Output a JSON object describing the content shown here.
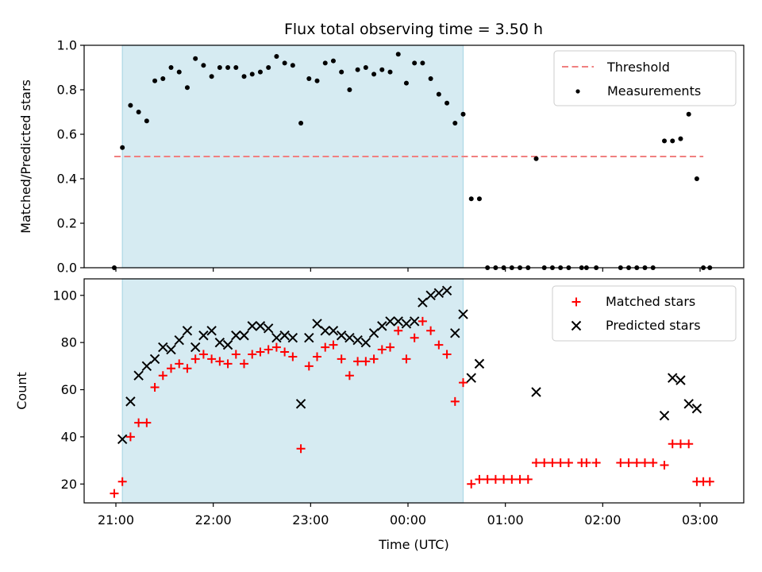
{
  "chart_data": [
    {
      "type": "scatter",
      "title": "Flux total observing time = 3.50 h",
      "xlabel": "",
      "ylabel": "Matched/Predicted stars",
      "ylim": [
        0,
        1.0
      ],
      "yticks": [
        "0.0",
        "0.2",
        "0.4",
        "0.6",
        "0.8",
        "1.0"
      ],
      "grid": false,
      "legend_position": "top-right",
      "shaded_span": [
        "21:04",
        "00:34"
      ],
      "threshold": {
        "name": "Threshold",
        "y": 0.5,
        "x_range": [
          "20:59",
          "03:02"
        ],
        "color": "#f08080"
      },
      "series": [
        {
          "name": "Measurements",
          "color": "#000000",
          "marker": "dot",
          "points": [
            [
              "20:59",
              0.0
            ],
            [
              "21:04",
              0.54
            ],
            [
              "21:09",
              0.73
            ],
            [
              "21:14",
              0.7
            ],
            [
              "21:19",
              0.66
            ],
            [
              "21:24",
              0.84
            ],
            [
              "21:29",
              0.85
            ],
            [
              "21:34",
              0.9
            ],
            [
              "21:39",
              0.88
            ],
            [
              "21:44",
              0.81
            ],
            [
              "21:49",
              0.94
            ],
            [
              "21:54",
              0.91
            ],
            [
              "21:59",
              0.86
            ],
            [
              "22:04",
              0.9
            ],
            [
              "22:09",
              0.9
            ],
            [
              "22:14",
              0.9
            ],
            [
              "22:19",
              0.86
            ],
            [
              "22:24",
              0.87
            ],
            [
              "22:29",
              0.88
            ],
            [
              "22:34",
              0.9
            ],
            [
              "22:39",
              0.95
            ],
            [
              "22:44",
              0.92
            ],
            [
              "22:49",
              0.91
            ],
            [
              "22:54",
              0.65
            ],
            [
              "22:59",
              0.85
            ],
            [
              "23:04",
              0.84
            ],
            [
              "23:09",
              0.92
            ],
            [
              "23:14",
              0.93
            ],
            [
              "23:19",
              0.88
            ],
            [
              "23:24",
              0.8
            ],
            [
              "23:29",
              0.89
            ],
            [
              "23:34",
              0.9
            ],
            [
              "23:39",
              0.87
            ],
            [
              "23:44",
              0.89
            ],
            [
              "23:49",
              0.88
            ],
            [
              "23:54",
              0.96
            ],
            [
              "23:59",
              0.83
            ],
            [
              "00:04",
              0.92
            ],
            [
              "00:09",
              0.92
            ],
            [
              "00:14",
              0.85
            ],
            [
              "00:19",
              0.78
            ],
            [
              "00:24",
              0.74
            ],
            [
              "00:29",
              0.65
            ],
            [
              "00:34",
              0.69
            ],
            [
              "00:39",
              0.31
            ],
            [
              "00:44",
              0.31
            ],
            [
              "00:49",
              0.0
            ],
            [
              "00:54",
              0.0
            ],
            [
              "00:59",
              0.0
            ],
            [
              "01:04",
              0.0
            ],
            [
              "01:09",
              0.0
            ],
            [
              "01:14",
              0.0
            ],
            [
              "01:19",
              0.49
            ],
            [
              "01:24",
              0.0
            ],
            [
              "01:29",
              0.0
            ],
            [
              "01:34",
              0.0
            ],
            [
              "01:39",
              0.0
            ],
            [
              "01:47",
              0.0
            ],
            [
              "01:50",
              0.0
            ],
            [
              "01:56",
              0.0
            ],
            [
              "02:11",
              0.0
            ],
            [
              "02:16",
              0.0
            ],
            [
              "02:21",
              0.0
            ],
            [
              "02:26",
              0.0
            ],
            [
              "02:31",
              0.0
            ],
            [
              "02:38",
              0.57
            ],
            [
              "02:43",
              0.57
            ],
            [
              "02:48",
              0.58
            ],
            [
              "02:53",
              0.69
            ],
            [
              "02:58",
              0.4
            ],
            [
              "03:02",
              0.0
            ],
            [
              "03:06",
              0.0
            ]
          ]
        }
      ]
    },
    {
      "type": "scatter",
      "title": "",
      "xlabel": "Time (UTC)",
      "ylabel": "Count",
      "ylim": [
        12,
        107
      ],
      "yticks": [
        "20",
        "40",
        "60",
        "80",
        "100"
      ],
      "xticks": [
        "21:00",
        "22:00",
        "23:00",
        "00:00",
        "01:00",
        "02:00",
        "03:00"
      ],
      "grid": false,
      "legend_position": "top-right",
      "shaded_span": [
        "21:04",
        "00:34"
      ],
      "series": [
        {
          "name": "Matched stars",
          "color": "#ff0000",
          "marker": "plus",
          "points": [
            [
              "20:59",
              16
            ],
            [
              "21:04",
              21
            ],
            [
              "21:09",
              40
            ],
            [
              "21:14",
              46
            ],
            [
              "21:19",
              46
            ],
            [
              "21:24",
              61
            ],
            [
              "21:29",
              66
            ],
            [
              "21:34",
              69
            ],
            [
              "21:39",
              71
            ],
            [
              "21:44",
              69
            ],
            [
              "21:49",
              73
            ],
            [
              "21:54",
              75
            ],
            [
              "21:59",
              73
            ],
            [
              "22:04",
              72
            ],
            [
              "22:09",
              71
            ],
            [
              "22:14",
              75
            ],
            [
              "22:19",
              71
            ],
            [
              "22:24",
              75
            ],
            [
              "22:29",
              76
            ],
            [
              "22:34",
              77
            ],
            [
              "22:39",
              78
            ],
            [
              "22:44",
              76
            ],
            [
              "22:49",
              74
            ],
            [
              "22:54",
              35
            ],
            [
              "22:59",
              70
            ],
            [
              "23:04",
              74
            ],
            [
              "23:09",
              78
            ],
            [
              "23:14",
              79
            ],
            [
              "23:19",
              73
            ],
            [
              "23:24",
              66
            ],
            [
              "23:29",
              72
            ],
            [
              "23:34",
              72
            ],
            [
              "23:39",
              73
            ],
            [
              "23:44",
              77
            ],
            [
              "23:49",
              78
            ],
            [
              "23:54",
              85
            ],
            [
              "23:59",
              73
            ],
            [
              "00:04",
              82
            ],
            [
              "00:09",
              89
            ],
            [
              "00:14",
              85
            ],
            [
              "00:19",
              79
            ],
            [
              "00:24",
              75
            ],
            [
              "00:29",
              55
            ],
            [
              "00:34",
              63
            ],
            [
              "00:39",
              20
            ],
            [
              "00:44",
              22
            ],
            [
              "00:49",
              22
            ],
            [
              "00:54",
              22
            ],
            [
              "00:59",
              22
            ],
            [
              "01:04",
              22
            ],
            [
              "01:09",
              22
            ],
            [
              "01:14",
              22
            ],
            [
              "01:19",
              29
            ],
            [
              "01:24",
              29
            ],
            [
              "01:29",
              29
            ],
            [
              "01:34",
              29
            ],
            [
              "01:39",
              29
            ],
            [
              "01:47",
              29
            ],
            [
              "01:50",
              29
            ],
            [
              "01:56",
              29
            ],
            [
              "02:11",
              29
            ],
            [
              "02:16",
              29
            ],
            [
              "02:21",
              29
            ],
            [
              "02:26",
              29
            ],
            [
              "02:31",
              29
            ],
            [
              "02:38",
              28
            ],
            [
              "02:43",
              37
            ],
            [
              "02:48",
              37
            ],
            [
              "02:53",
              37
            ],
            [
              "02:58",
              21
            ],
            [
              "03:02",
              21
            ],
            [
              "03:06",
              21
            ]
          ]
        },
        {
          "name": "Predicted stars",
          "color": "#000000",
          "marker": "x",
          "points": [
            [
              "21:04",
              39
            ],
            [
              "21:09",
              55
            ],
            [
              "21:14",
              66
            ],
            [
              "21:19",
              70
            ],
            [
              "21:24",
              73
            ],
            [
              "21:29",
              78
            ],
            [
              "21:34",
              77
            ],
            [
              "21:39",
              81
            ],
            [
              "21:44",
              85
            ],
            [
              "21:49",
              78
            ],
            [
              "21:54",
              83
            ],
            [
              "21:59",
              85
            ],
            [
              "22:04",
              80
            ],
            [
              "22:09",
              79
            ],
            [
              "22:14",
              83
            ],
            [
              "22:19",
              83
            ],
            [
              "22:24",
              87
            ],
            [
              "22:29",
              87
            ],
            [
              "22:34",
              86
            ],
            [
              "22:39",
              82
            ],
            [
              "22:44",
              83
            ],
            [
              "22:49",
              82
            ],
            [
              "22:54",
              54
            ],
            [
              "22:59",
              82
            ],
            [
              "23:04",
              88
            ],
            [
              "23:09",
              85
            ],
            [
              "23:14",
              85
            ],
            [
              "23:19",
              83
            ],
            [
              "23:24",
              82
            ],
            [
              "23:29",
              81
            ],
            [
              "23:34",
              80
            ],
            [
              "23:39",
              84
            ],
            [
              "23:44",
              87
            ],
            [
              "23:49",
              89
            ],
            [
              "23:54",
              89
            ],
            [
              "23:59",
              88
            ],
            [
              "00:04",
              89
            ],
            [
              "00:09",
              97
            ],
            [
              "00:14",
              100
            ],
            [
              "00:19",
              101
            ],
            [
              "00:24",
              102
            ],
            [
              "00:29",
              84
            ],
            [
              "00:34",
              92
            ],
            [
              "00:39",
              65
            ],
            [
              "00:44",
              71
            ],
            [
              "01:19",
              59
            ],
            [
              "02:38",
              49
            ],
            [
              "02:43",
              65
            ],
            [
              "02:48",
              64
            ],
            [
              "02:53",
              54
            ],
            [
              "02:58",
              52
            ]
          ]
        }
      ]
    }
  ]
}
